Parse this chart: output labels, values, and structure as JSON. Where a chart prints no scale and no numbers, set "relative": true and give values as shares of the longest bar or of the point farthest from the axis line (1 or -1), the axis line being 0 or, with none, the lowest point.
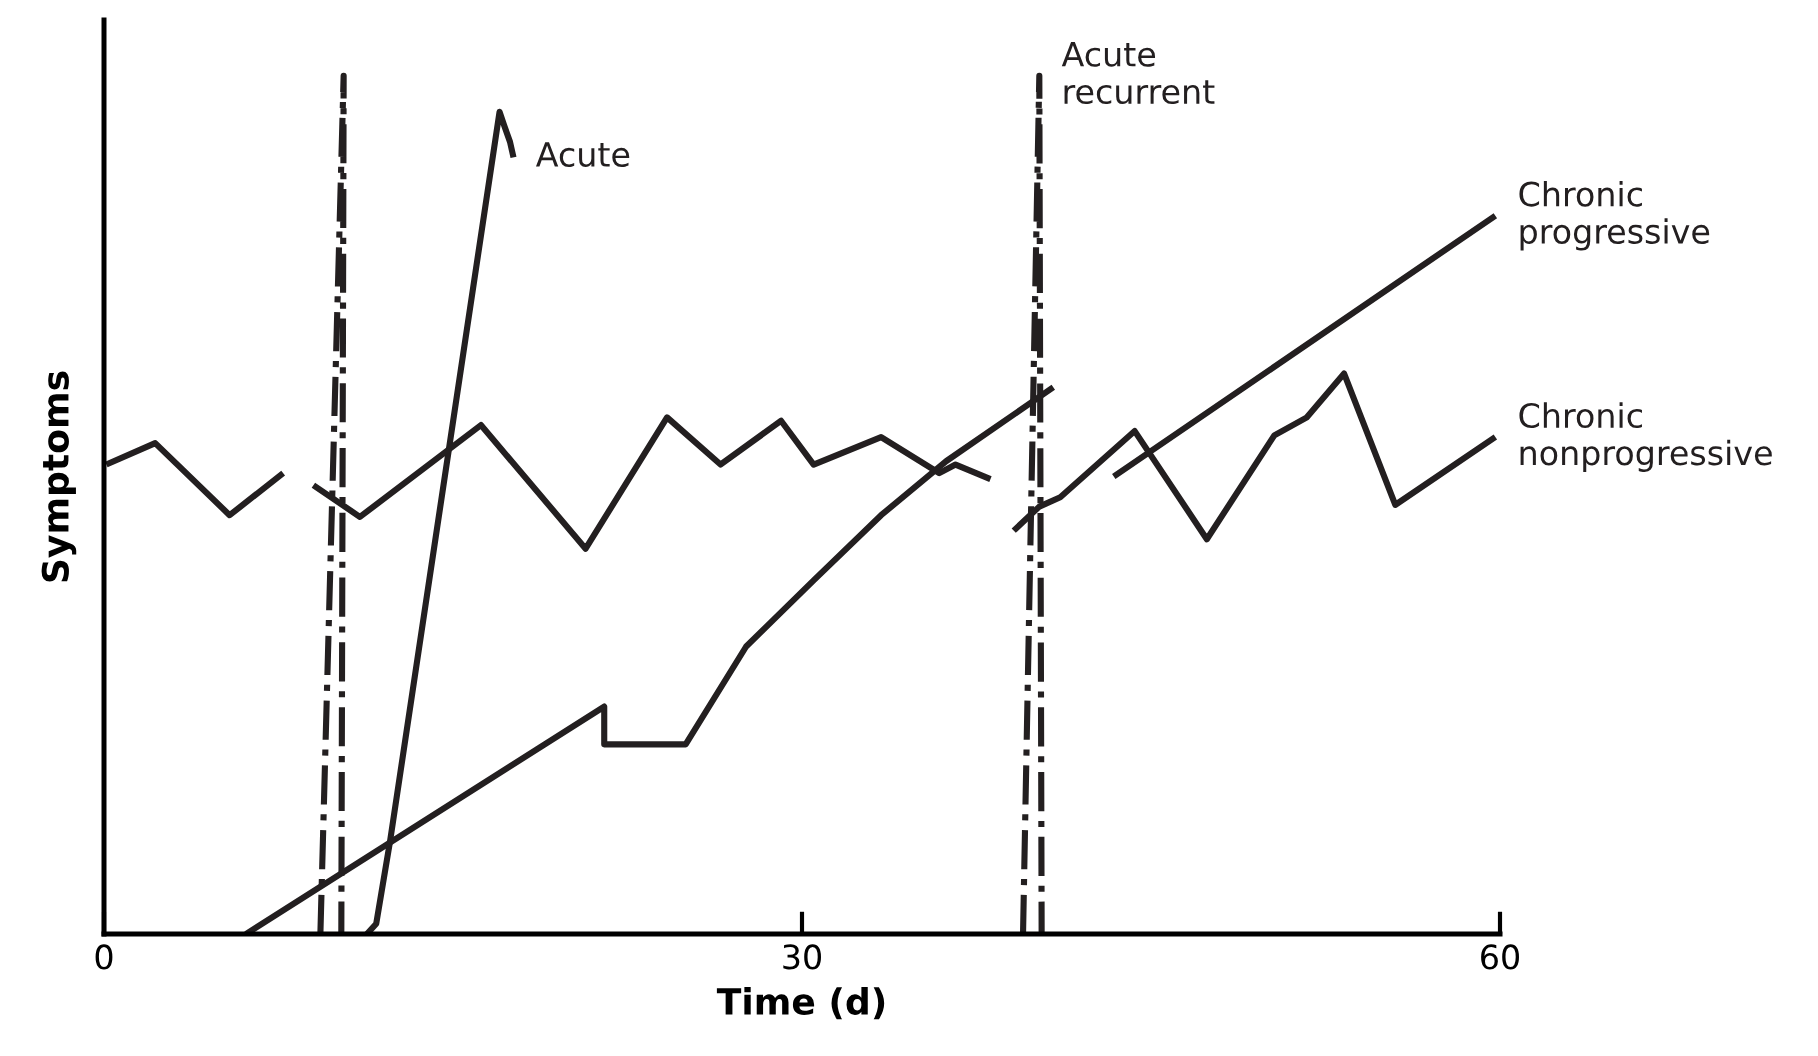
{
  "chart_data": {
    "type": "line",
    "relative": true,
    "xlabel": "Time (d)",
    "ylabel": "Symptoms",
    "xlim": [
      0,
      60
    ],
    "xticks": [
      0,
      30,
      60
    ],
    "tick_labels": "x",
    "grid": false,
    "legend": false,
    "marker": "none",
    "series": [
      {
        "name": "Acute",
        "color": "#231f20",
        "line_style": "solid",
        "x": [
          11.3,
          11.7,
          12.3,
          17.0,
          17.2,
          17.45,
          17.6
        ],
        "values": [
          0,
          0.012,
          0.109,
          0.958,
          0.942,
          0.923,
          0.905
        ]
      },
      {
        "name": "Acute\nrecurrent",
        "color": "#231f20",
        "line_style": "dashdot",
        "x": [
          9.3,
          10.3,
          10.2,
          null,
          39.5,
          40.2,
          40.3
        ],
        "values": [
          0,
          1,
          0,
          null,
          0,
          1,
          0
        ]
      },
      {
        "name": "Chronic\nprogressive",
        "color": "#231f20",
        "line_style": "solid",
        "x": [
          6.1,
          21.5,
          21.5,
          25.0,
          27.6,
          30.5,
          33.4,
          36.2,
          40.8,
          null,
          43.4,
          59.8
        ],
        "values": [
          0,
          0.265,
          0.221,
          0.221,
          0.335,
          0.412,
          0.488,
          0.551,
          0.637,
          null,
          0.533,
          0.837
        ]
      },
      {
        "name": "Chronic\nnonprogressive",
        "color": "#231f20",
        "line_style": "solid",
        "x": [
          0.1,
          2.2,
          5.4,
          7.7,
          null,
          9.0,
          11.0,
          16.2,
          20.7,
          24.2,
          26.5,
          29.1,
          30.5,
          33.4,
          35.9,
          36.6,
          38.1,
          null,
          39.1,
          40.2,
          41.1,
          44.3,
          47.4,
          50.3,
          51.7,
          53.3,
          55.5,
          59.8
        ],
        "values": [
          0.547,
          0.572,
          0.488,
          0.537,
          null,
          0.523,
          0.486,
          0.593,
          0.449,
          0.602,
          0.547,
          0.598,
          0.547,
          0.579,
          0.537,
          0.547,
          0.53,
          null,
          0.47,
          0.498,
          0.509,
          0.586,
          0.46,
          0.581,
          0.602,
          0.653,
          0.5,
          0.579
        ]
      }
    ]
  }
}
